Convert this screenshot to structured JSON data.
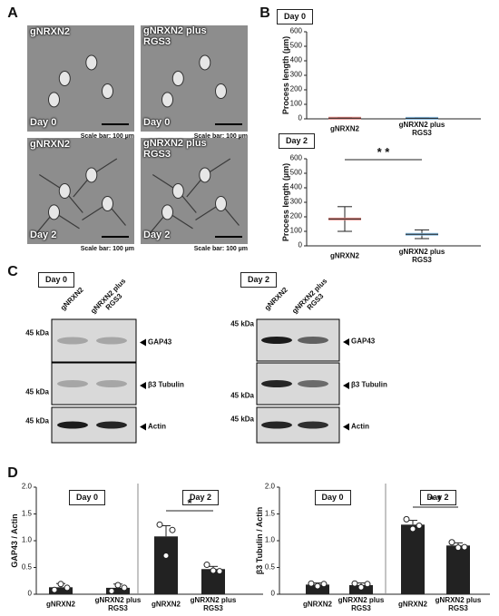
{
  "panel_labels": [
    "A",
    "B",
    "C",
    "D"
  ],
  "panel_a": {
    "images": [
      {
        "label": "gNRXN2",
        "day": "Day 0",
        "scale": "Scale bar: 100 µm"
      },
      {
        "label": "gNRXN2 plus RGS3",
        "day": "Day 0",
        "scale": "Scale bar: 100 µm"
      },
      {
        "label": "gNRXN2",
        "day": "Day 2",
        "scale": "Scale bar: 100 µm"
      },
      {
        "label": "gNRXN2 plus RGS3",
        "day": "Day 2",
        "scale": "Scale bar: 100 µm"
      }
    ]
  },
  "panel_c": {
    "blots": [
      {
        "day": "Day 0",
        "lanes": [
          "gNRXN2",
          "gNRXN2 plus RGS3"
        ],
        "rows": [
          {
            "marker": "45 kDa",
            "protein": "GAP43"
          },
          {
            "marker": "45 kDa",
            "protein": "β3 Tubulin"
          },
          {
            "marker": "45 kDa",
            "protein": "Actin"
          }
        ]
      },
      {
        "day": "Day 2",
        "lanes": [
          "gNRXN2",
          "gNRXN2 plus RGS3"
        ],
        "rows": [
          {
            "marker": "45 kDa",
            "protein": "GAP43"
          },
          {
            "marker": "45 kDa",
            "protein": "β3 Tubulin"
          },
          {
            "marker": "45 kDa",
            "protein": "Actin"
          }
        ]
      }
    ]
  },
  "chart_data": [
    {
      "type": "dot",
      "title": "Day 0",
      "ylabel": "Process length (µm)",
      "categories": [
        "gNRXN2",
        "gNRXN2 plus RGS3"
      ],
      "values": [
        5,
        4
      ],
      "errors": [
        4,
        3
      ],
      "colors": [
        "#e8837e",
        "#7fb7e0"
      ],
      "ylim": [
        0,
        600
      ],
      "yticks": [
        0,
        100,
        200,
        300,
        400,
        500,
        600
      ]
    },
    {
      "type": "dot",
      "title": "Day 2",
      "ylabel": "Process length (µm)",
      "categories": [
        "gNRXN2",
        "gNRXN2 plus RGS3"
      ],
      "values": [
        185,
        80
      ],
      "errors": [
        85,
        30
      ],
      "colors": [
        "#e8837e",
        "#7fb7e0"
      ],
      "ylim": [
        0,
        600
      ],
      "yticks": [
        0,
        100,
        200,
        300,
        400,
        500,
        600
      ],
      "significance": "* *"
    },
    {
      "type": "bar",
      "ylabel": "GAP43 / Actin",
      "sections": [
        "Day 0",
        "Day 2"
      ],
      "categories": [
        "gNRXN2",
        "gNRXN2 plus RGS3",
        "gNRXN2",
        "gNRXN2 plus RGS3"
      ],
      "values": [
        0.13,
        0.12,
        1.08,
        0.47
      ],
      "errors": [
        0.07,
        0.07,
        0.2,
        0.05
      ],
      "points": [
        [
          0.08,
          0.19,
          0.12
        ],
        [
          0.06,
          0.17,
          0.12
        ],
        [
          1.3,
          0.72,
          1.2
        ],
        [
          0.55,
          0.44,
          0.43
        ]
      ],
      "color": "#222222",
      "ylim": [
        0,
        2
      ],
      "yticks": [
        0,
        0.5,
        {
          "value": 1,
          "label": "1.0"
        },
        1.5,
        {
          "value": 2,
          "label": "2.0"
        }
      ],
      "significance": "*"
    },
    {
      "type": "bar",
      "ylabel": "β3 Tubulin / Actin",
      "sections": [
        "Day 0",
        "Day 2"
      ],
      "categories": [
        "gNRXN2",
        "gNRXN2 plus RGS3",
        "gNRXN2",
        "gNRXN2 plus RGS3"
      ],
      "values": [
        0.18,
        0.17,
        1.3,
        0.91
      ],
      "errors": [
        0.03,
        0.04,
        0.08,
        0.05
      ],
      "points": [
        [
          0.2,
          0.15,
          0.19
        ],
        [
          0.2,
          0.13,
          0.19
        ],
        [
          1.4,
          1.22,
          1.28
        ],
        [
          0.97,
          0.87,
          0.88
        ]
      ],
      "color": "#222222",
      "ylim": [
        0,
        2
      ],
      "yticks": [
        0,
        0.5,
        {
          "value": 1,
          "label": "1.0"
        },
        1.5,
        {
          "value": 2,
          "label": "2.0"
        }
      ],
      "significance": "* *"
    }
  ]
}
